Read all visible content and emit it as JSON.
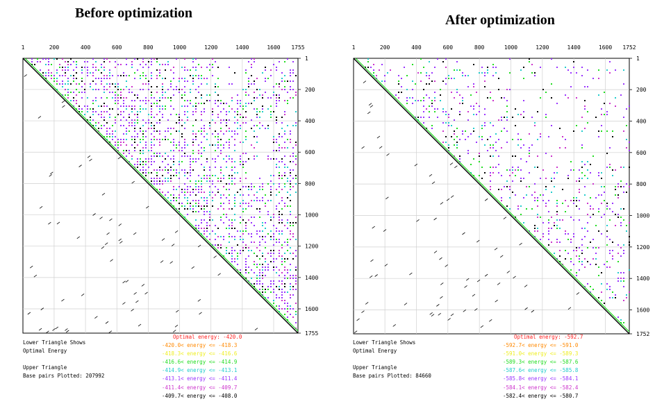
{
  "colors": {
    "optimal": "#ff2020",
    "c1": "#ff8800",
    "c2": "#eeee20",
    "c3": "#20dd20",
    "c4": "#20cccc",
    "c5": "#9933ff",
    "c6": "#cc33cc",
    "c7": "#000000",
    "grid": "#cfcfcf"
  },
  "chart_data": [
    {
      "type": "heatmap",
      "title": "Before optimization",
      "max_index": 1755,
      "top_ticks": [
        "1",
        "200",
        "400",
        "600",
        "800",
        "1000",
        "1200",
        "1400",
        "1600",
        "1755"
      ],
      "right_ticks": [
        "1",
        "200",
        "400",
        "600",
        "800",
        "1000",
        "1200",
        "1400",
        "1600",
        "1755"
      ],
      "lower_label_1": "Lower Triangle Shows",
      "lower_label_2": "Optimal Energy",
      "upper_label": "Upper Triangle",
      "pairs_plotted": "Base pairs Plotted: 207992",
      "optimal_energy": "Optimal energy:  -420.0",
      "legend": [
        {
          "text": "-420.0< energy <=  -418.3",
          "color_key": "c1"
        },
        {
          "text": "-418.3< energy <=  -416.6",
          "color_key": "c2"
        },
        {
          "text": "-416.6< energy <=  -414.9",
          "color_key": "c3"
        },
        {
          "text": "-414.9< energy <=  -413.1",
          "color_key": "c4"
        },
        {
          "text": "-413.1< energy <=  -411.4",
          "color_key": "c5"
        },
        {
          "text": "-411.4< energy <=  -409.7",
          "color_key": "c6"
        },
        {
          "text": "-409.7< energy <=  -408.0",
          "color_key": "c7"
        }
      ],
      "density": 0.85
    },
    {
      "type": "heatmap",
      "title": "After optimization",
      "max_index": 1752,
      "top_ticks": [
        "1",
        "200",
        "400",
        "600",
        "800",
        "1000",
        "1200",
        "1400",
        "1600",
        "1752"
      ],
      "right_ticks": [
        "1",
        "200",
        "400",
        "600",
        "800",
        "1000",
        "1200",
        "1400",
        "1600",
        "1752"
      ],
      "lower_label_1": "Lower Triangle Shows",
      "lower_label_2": "Optimal Energy",
      "upper_label": "Upper Triangle",
      "pairs_plotted": "Base pairs Plotted: 84660",
      "optimal_energy": "Optimal energy:  -592.7",
      "legend": [
        {
          "text": "-592.7< energy <=  -591.0",
          "color_key": "c1"
        },
        {
          "text": "-591.0< energy <=  -589.3",
          "color_key": "c2"
        },
        {
          "text": "-589.3< energy <=  -587.6",
          "color_key": "c3"
        },
        {
          "text": "-587.6< energy <=  -585.8",
          "color_key": "c4"
        },
        {
          "text": "-585.8< energy <=  -584.1",
          "color_key": "c5"
        },
        {
          "text": "-584.1< energy <=  -582.4",
          "color_key": "c6"
        },
        {
          "text": "-582.4< energy <=  -580.7",
          "color_key": "c7"
        }
      ],
      "density": 0.4
    }
  ]
}
